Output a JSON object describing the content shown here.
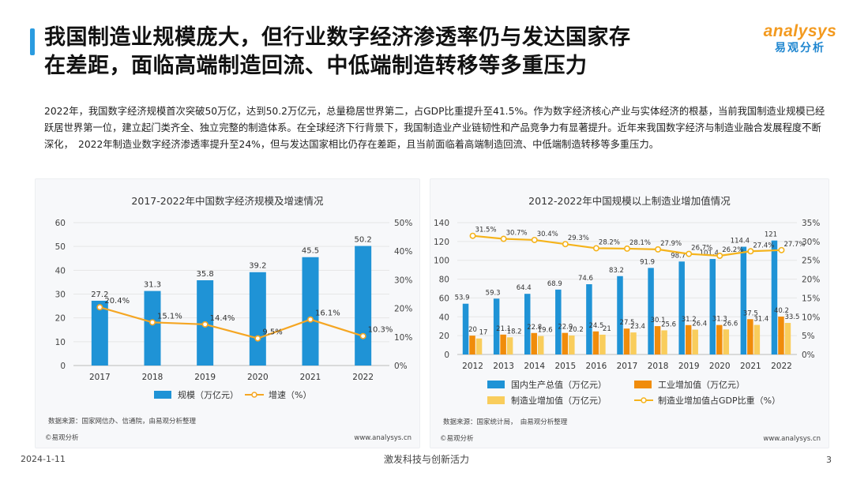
{
  "header": {
    "title_line1": "我国制造业规模庞大，但行业数字经济渗透率仍与发达国家存",
    "title_line2": "在差距，面临高端制造回流、中低端制造转移等多重压力",
    "logo_en": "analysys",
    "logo_cn": "易观分析",
    "accent_color": "#2a9be0"
  },
  "intro": "2022年，我国数字经济规模首次突破50万亿，达到50.2万亿元，总量稳居世界第二，占GDP比重提升至41.5%。作为数字经济核心产业与实体经济的根基，当前我国制造业规模已经跃居世界第一位，建立起门类齐全、独立完整的制造体系。在全球经济下行背景下，我国制造业产业链韧性和产品竞争力有显著提升。近年来我国数字经济与制造业融合发展程度不断深化，　2022年制造业数字经济渗透率提升至24%，但与发达国家相比仍存在差距，且当前面临着高端制造回流、中低端制造转移等多重压力。",
  "chart_data": [
    {
      "type": "bar+line",
      "title": "2017-2022年中国数字经济规模及增速情况",
      "categories": [
        "2017",
        "2018",
        "2019",
        "2020",
        "2021",
        "2022"
      ],
      "series": [
        {
          "name": "规模（万亿元）",
          "kind": "bar",
          "axis": "left",
          "color": "#1f93d6",
          "values": [
            27.2,
            31.3,
            35.8,
            39.2,
            45.5,
            50.2
          ],
          "labels": [
            "27.2",
            "31.3",
            "35.8",
            "39.2",
            "45.5",
            "50.2"
          ]
        },
        {
          "name": "增速（%）",
          "kind": "line",
          "axis": "right",
          "color": "#f5a623",
          "values": [
            20.4,
            15.1,
            14.4,
            9.5,
            16.1,
            10.3
          ],
          "labels": [
            "20.4%",
            "15.1%",
            "14.4%",
            "9.5%",
            "16.1%",
            "10.3%"
          ]
        }
      ],
      "left_ticks": [
        "0",
        "10",
        "20",
        "30",
        "40",
        "50",
        "60"
      ],
      "right_ticks": [
        "0%",
        "10%",
        "20%",
        "30%",
        "40%",
        "50%"
      ],
      "ylim_left": [
        0,
        60
      ],
      "ylim_right": [
        0,
        50
      ],
      "legend": [
        "规模（万亿元）",
        "增速（%）"
      ],
      "source": "数据来源：国家网信办、信通院，由易观分析整理",
      "copyright": "©易观分析",
      "website": "www.analysys.cn"
    },
    {
      "type": "bar+line",
      "title": "2012-2022年中国规模以上制造业增加值情况",
      "categories": [
        "2012",
        "2013",
        "2014",
        "2015",
        "2016",
        "2017",
        "2018",
        "2019",
        "2020",
        "2021",
        "2022"
      ],
      "series": [
        {
          "name": "国内生产总值（万亿元）",
          "kind": "bar",
          "axis": "left",
          "color": "#1f93d6",
          "values": [
            53.9,
            59.3,
            64.4,
            68.9,
            74.6,
            83.2,
            91.9,
            98.7,
            101.4,
            114.4,
            121
          ],
          "labels": [
            "53.9",
            "59.3",
            "64.4",
            "68.9",
            "74.6",
            "83.2",
            "91.9",
            "98.7",
            "101.4",
            "114.4",
            "121"
          ]
        },
        {
          "name": "工业增加值（万亿元）",
          "kind": "bar",
          "axis": "left",
          "color": "#f08c0b",
          "values": [
            20,
            21.1,
            22.8,
            22.9,
            24.5,
            27.5,
            30.1,
            31.2,
            31.3,
            37.5,
            40.2
          ],
          "labels": [
            "20",
            "21.1",
            "22.8",
            "22.9",
            "24.5",
            "27.5",
            "30.1",
            "31.2",
            "31.3",
            "37.5",
            "40.2"
          ]
        },
        {
          "name": "制造业增加值（万亿元）",
          "kind": "bar",
          "axis": "left",
          "color": "#f9cd5c",
          "values": [
            17,
            18.2,
            19.6,
            20.2,
            21,
            23.4,
            25.6,
            26.4,
            26.6,
            31.4,
            33.5
          ],
          "labels": [
            "17",
            "18.2",
            "19.6",
            "20.2",
            "21",
            "23.4",
            "25.6",
            "26.4",
            "26.6",
            "31.4",
            "33.5"
          ]
        },
        {
          "name": "制造业增加值占GDP比重（%）",
          "kind": "line",
          "axis": "right",
          "color": "#f5b31b",
          "values": [
            31.5,
            30.7,
            30.4,
            29.3,
            28.2,
            28.1,
            27.9,
            26.7,
            26.2,
            27.4,
            27.7
          ],
          "labels": [
            "31.5%",
            "30.7%",
            "30.4%",
            "29.3%",
            "28.2%",
            "28.1%",
            "27.9%",
            "26.7%",
            "26.2%",
            "27.4%",
            "27.7%"
          ]
        }
      ],
      "left_ticks": [
        "0",
        "20",
        "40",
        "60",
        "80",
        "100",
        "120",
        "140"
      ],
      "right_ticks": [
        "0%",
        "5%",
        "10%",
        "15%",
        "20%",
        "25%",
        "30%",
        "35%"
      ],
      "ylim_left": [
        0,
        140
      ],
      "ylim_right": [
        0,
        35
      ],
      "legend": [
        "国内生产总值（万亿元）",
        "工业增加值（万亿元）",
        "制造业增加值（万亿元）",
        "制造业增加值占GDP比重（%）"
      ],
      "source": "数据来源：国家统计局，　由易观分析整理",
      "copyright": "©易观分析",
      "website": "www.analysys.cn"
    }
  ],
  "footer": {
    "date": "2024-1-11",
    "slogan": "激发科技与创新活力",
    "page": "3"
  }
}
